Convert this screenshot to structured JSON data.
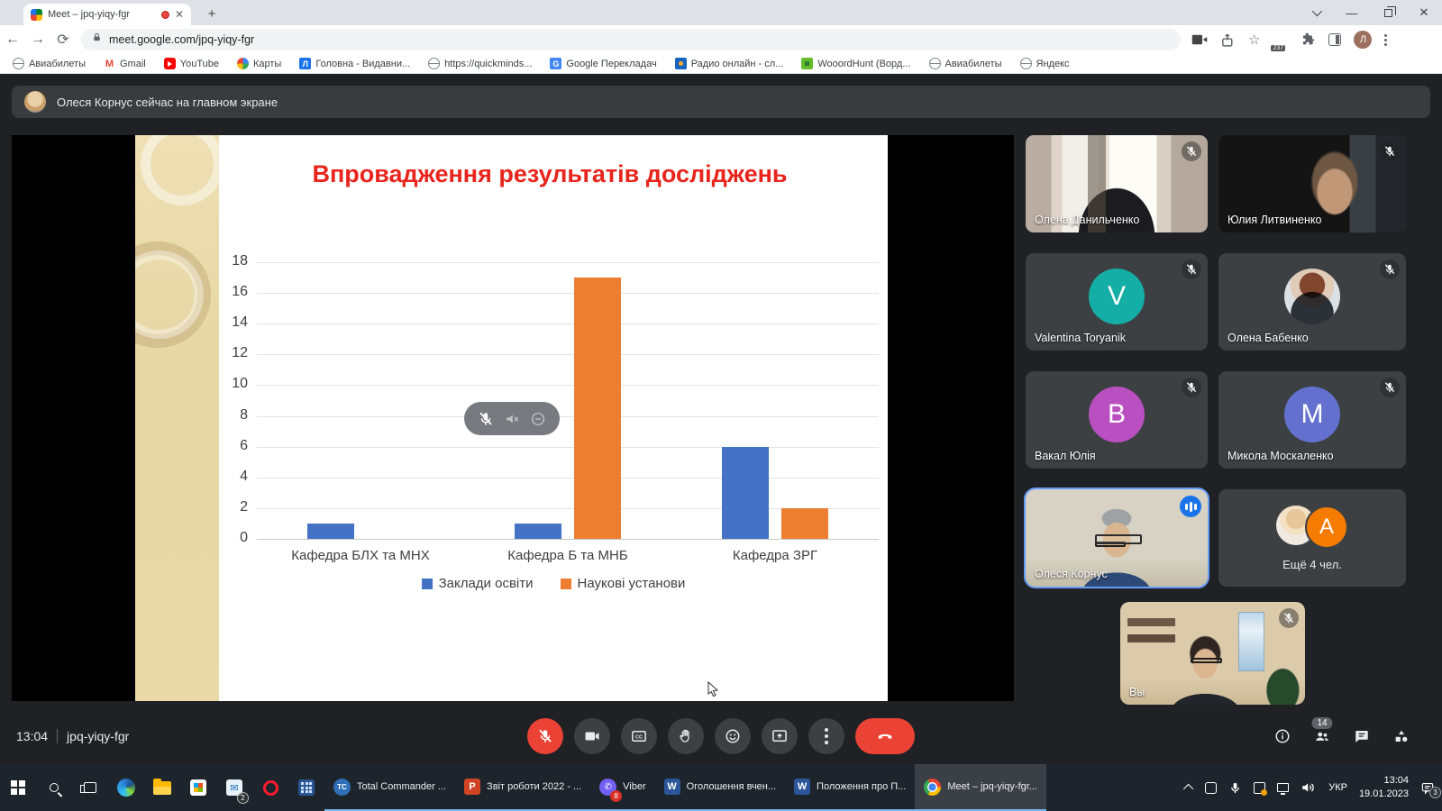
{
  "browser": {
    "tab_title": "Meet – jpq-yiqy-fgr",
    "new_tab_label": "+",
    "url": "meet.google.com/jpq-yiqy-fgr",
    "extension_badge": "237",
    "profile_initial": "Л",
    "bookmarks": [
      {
        "label": "Авиабилеты",
        "icon": "globe"
      },
      {
        "label": "Gmail",
        "icon": "gmail"
      },
      {
        "label": "YouTube",
        "icon": "youtube"
      },
      {
        "label": "Карты",
        "icon": "maps"
      },
      {
        "label": "Головна - Видавни...",
        "icon": "bluesq"
      },
      {
        "label": "https://quickminds...",
        "icon": "globe"
      },
      {
        "label": "Google Перекладач",
        "icon": "translate"
      },
      {
        "label": "Радио онлайн - сл...",
        "icon": "radio"
      },
      {
        "label": "WooordHunt (Ворд...",
        "icon": "greensq"
      },
      {
        "label": "Авиабилеты",
        "icon": "globe"
      },
      {
        "label": "Яндекс",
        "icon": "globe"
      }
    ]
  },
  "banner": {
    "text": "Олеся Корнус сейчас на главном экране"
  },
  "chart_data": {
    "type": "bar",
    "title": "Впровадження результатів досліджень",
    "title_color": "#e8241c",
    "categories": [
      "Кафедра БЛХ та МНХ",
      "Кафедра Б та МНБ",
      "Кафедра ЗРГ"
    ],
    "series": [
      {
        "name": "Заклади освіти",
        "color": "#4472c4",
        "values": [
          1,
          1,
          6
        ]
      },
      {
        "name": "Наукові установи",
        "color": "#ed7d31",
        "values": [
          0,
          17,
          2
        ]
      }
    ],
    "ylim": [
      0,
      18
    ],
    "ytick_step": 2,
    "grid": true,
    "legend_position": "bottom"
  },
  "participants": [
    {
      "name": "Олена Данильченко",
      "type": "video",
      "scene": "window",
      "muted": true
    },
    {
      "name": "Юлия Литвиненко",
      "type": "video",
      "scene": "dark-person",
      "muted": true
    },
    {
      "name": "Valentina Toryanik",
      "type": "letter",
      "letter": "V",
      "color": "#14aea6",
      "muted": true
    },
    {
      "name": "Олена Бабенко",
      "type": "photo",
      "muted": true
    },
    {
      "name": "Вакал Юлія",
      "type": "letter",
      "letter": "В",
      "color": "#b94fc1",
      "muted": true
    },
    {
      "name": "Микола Москаленко",
      "type": "letter",
      "letter": "М",
      "color": "#6370ce",
      "muted": true
    },
    {
      "name": "Олеся Корнус",
      "type": "video",
      "scene": "speaker",
      "muted": false,
      "speaking": true
    },
    {
      "name": "Ещё 4 чел.",
      "type": "overflow",
      "letter": "A",
      "color": "#f57c00"
    }
  ],
  "self_view": {
    "label": "Вы",
    "muted": true
  },
  "meet_bar": {
    "time": "13:04",
    "code": "jpq-yiqy-fgr",
    "buttons": [
      {
        "name": "mic",
        "icon": "mic-off",
        "style": "danger"
      },
      {
        "name": "camera",
        "icon": "cam",
        "style": "dark"
      },
      {
        "name": "captions",
        "icon": "cc",
        "style": "dark"
      },
      {
        "name": "raise-hand",
        "icon": "hand",
        "style": "dark"
      },
      {
        "name": "reactions",
        "icon": "smile",
        "style": "dark"
      },
      {
        "name": "present",
        "icon": "present",
        "style": "dark"
      },
      {
        "name": "more",
        "icon": "dots",
        "style": "dark"
      },
      {
        "name": "end-call",
        "icon": "phone",
        "style": "danger wide"
      }
    ],
    "right_icons": [
      {
        "name": "info",
        "icon": "info"
      },
      {
        "name": "people",
        "icon": "people",
        "badge": "14"
      },
      {
        "name": "chat",
        "icon": "chat"
      },
      {
        "name": "activities",
        "icon": "shapes"
      }
    ]
  },
  "overlay_pill_icons": [
    "mic-off",
    "sound-off",
    "minus-circle"
  ],
  "taskbar": {
    "pinned": [
      {
        "name": "start",
        "icon": "win"
      },
      {
        "name": "search",
        "icon": "search"
      },
      {
        "name": "task-view",
        "icon": "taskview"
      },
      {
        "name": "edge",
        "icon": "edge"
      },
      {
        "name": "explorer",
        "icon": "folder"
      },
      {
        "name": "store",
        "icon": "store"
      },
      {
        "name": "mail",
        "icon": "mail",
        "badge": "2"
      },
      {
        "name": "opera",
        "icon": "opera"
      },
      {
        "name": "calculator",
        "icon": "calc"
      }
    ],
    "apps": [
      {
        "label": "Total Commander ...",
        "icon": "tc"
      },
      {
        "label": "Звіт роботи 2022 - ...",
        "icon": "ppt"
      },
      {
        "label": "Viber",
        "icon": "viber",
        "badge": "8"
      },
      {
        "label": "Оголошення вчен...",
        "icon": "word"
      },
      {
        "label": "Положення про П...",
        "icon": "word"
      },
      {
        "label": "Meet – jpq-yiqy-fgr...",
        "icon": "chrome",
        "active": true
      }
    ],
    "tray": {
      "lang": "УКР",
      "time": "13:04",
      "date": "19.01.2023",
      "notif_badge": "3",
      "icons": [
        "device",
        "mic",
        "sync",
        "net",
        "vol"
      ]
    }
  }
}
